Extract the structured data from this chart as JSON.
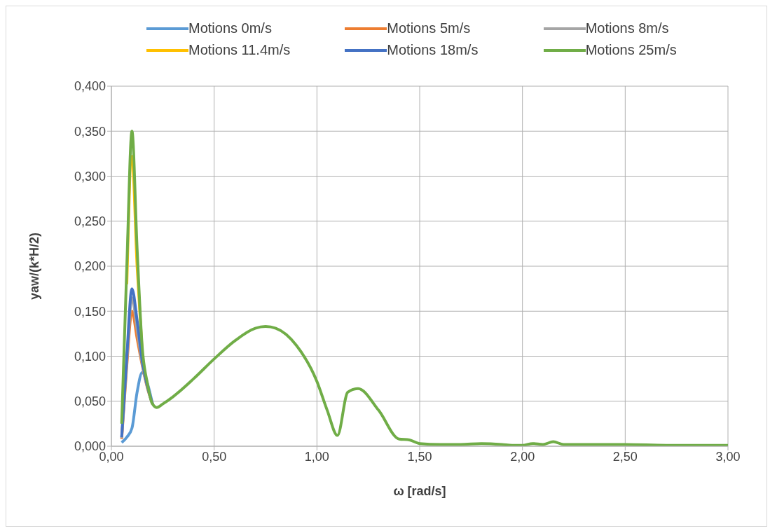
{
  "chart_data": {
    "type": "line",
    "xlabel": "ω [rad/s]",
    "ylabel": "yaw/(k*H/2)",
    "x": [
      0.05,
      0.075,
      0.1,
      0.125,
      0.15,
      0.175,
      0.2,
      0.22,
      0.25,
      0.3,
      0.4,
      0.5,
      0.6,
      0.7,
      0.75,
      0.8,
      0.9,
      1.0,
      1.05,
      1.1,
      1.15,
      1.2,
      1.3,
      1.4,
      1.45,
      1.5,
      1.6,
      1.7,
      1.8,
      1.9,
      1.95,
      2.0,
      2.05,
      2.1,
      2.15,
      2.2,
      2.5,
      2.7,
      3.0
    ],
    "series": [
      {
        "name": "Motions 0m/s",
        "color": "#5b9bd5",
        "values": [
          0.004,
          0.01,
          0.02,
          0.06,
          0.082,
          0.07,
          0.047,
          null,
          null,
          null,
          null,
          null,
          null,
          null,
          null,
          null,
          null,
          null,
          null,
          null,
          null,
          null,
          null,
          null,
          null,
          null,
          null,
          null,
          null,
          null,
          null,
          null,
          null,
          null,
          null,
          null,
          null,
          null,
          null
        ]
      },
      {
        "name": "Motions 5m/s",
        "color": "#ed7d31",
        "values": [
          0.008,
          0.09,
          0.15,
          0.12,
          0.09,
          0.065,
          0.047,
          null,
          null,
          null,
          null,
          null,
          null,
          null,
          null,
          null,
          null,
          null,
          null,
          null,
          null,
          null,
          null,
          null,
          null,
          null,
          null,
          null,
          null,
          null,
          null,
          null,
          null,
          null,
          null,
          null,
          null,
          null,
          null
        ]
      },
      {
        "name": "Motions 8m/s",
        "color": "#a5a5a5",
        "values": [
          0.009,
          0.095,
          0.165,
          0.13,
          0.092,
          0.066,
          0.047,
          null,
          null,
          null,
          null,
          null,
          null,
          null,
          null,
          null,
          null,
          null,
          null,
          null,
          null,
          null,
          null,
          null,
          null,
          null,
          null,
          null,
          null,
          null,
          null,
          null,
          null,
          null,
          null,
          null,
          null,
          null,
          null
        ]
      },
      {
        "name": "Motions 11.4m/s",
        "color": "#ffc000",
        "values": [
          null,
          0.18,
          0.322,
          0.2,
          0.105,
          null,
          null,
          null,
          null,
          null,
          null,
          null,
          null,
          null,
          null,
          null,
          null,
          null,
          null,
          null,
          null,
          null,
          null,
          null,
          null,
          null,
          null,
          null,
          null,
          null,
          null,
          null,
          null,
          null,
          null,
          null,
          null,
          null,
          null
        ]
      },
      {
        "name": "Motions 18m/s",
        "color": "#4472c4",
        "values": [
          0.01,
          0.1,
          0.175,
          0.14,
          0.095,
          0.067,
          0.047,
          null,
          null,
          null,
          null,
          null,
          null,
          null,
          null,
          null,
          null,
          null,
          null,
          null,
          null,
          null,
          null,
          null,
          null,
          null,
          null,
          null,
          null,
          null,
          null,
          null,
          null,
          null,
          null,
          null,
          null,
          null,
          null
        ]
      },
      {
        "name": "Motions 25m/s",
        "color": "#70ad47",
        "values": [
          0.025,
          0.2,
          0.35,
          0.22,
          0.11,
          0.07,
          0.047,
          0.043,
          0.047,
          0.055,
          0.075,
          0.097,
          0.117,
          0.131,
          0.133,
          0.131,
          0.112,
          0.072,
          0.04,
          0.012,
          0.06,
          0.064,
          0.04,
          0.008,
          0.007,
          0.003,
          0.002,
          0.002,
          0.003,
          0.002,
          0.001,
          0.001,
          0.003,
          0.002,
          0.005,
          0.002,
          0.002,
          0.001,
          0.001
        ]
      }
    ],
    "xlim": [
      0,
      3
    ],
    "xticks": [
      {
        "value": 0,
        "label": "0,00"
      },
      {
        "value": 0.5,
        "label": "0,50"
      },
      {
        "value": 1,
        "label": "1,00"
      },
      {
        "value": 1.5,
        "label": "1,50"
      },
      {
        "value": 2,
        "label": "2,00"
      },
      {
        "value": 2.5,
        "label": "2,50"
      },
      {
        "value": 3,
        "label": "3,00"
      }
    ],
    "ylim": [
      0,
      0.4
    ],
    "yticks": [
      {
        "value": 0,
        "label": "0,000"
      },
      {
        "value": 0.05,
        "label": "0,050"
      },
      {
        "value": 0.1,
        "label": "0,100"
      },
      {
        "value": 0.15,
        "label": "0,150"
      },
      {
        "value": 0.2,
        "label": "0,200"
      },
      {
        "value": 0.25,
        "label": "0,250"
      },
      {
        "value": 0.3,
        "label": "0,300"
      },
      {
        "value": 0.35,
        "label": "0,350"
      },
      {
        "value": 0.4,
        "label": "0,400"
      }
    ],
    "grid": true,
    "legend": "top",
    "marker": "none",
    "line_style": "solid"
  }
}
